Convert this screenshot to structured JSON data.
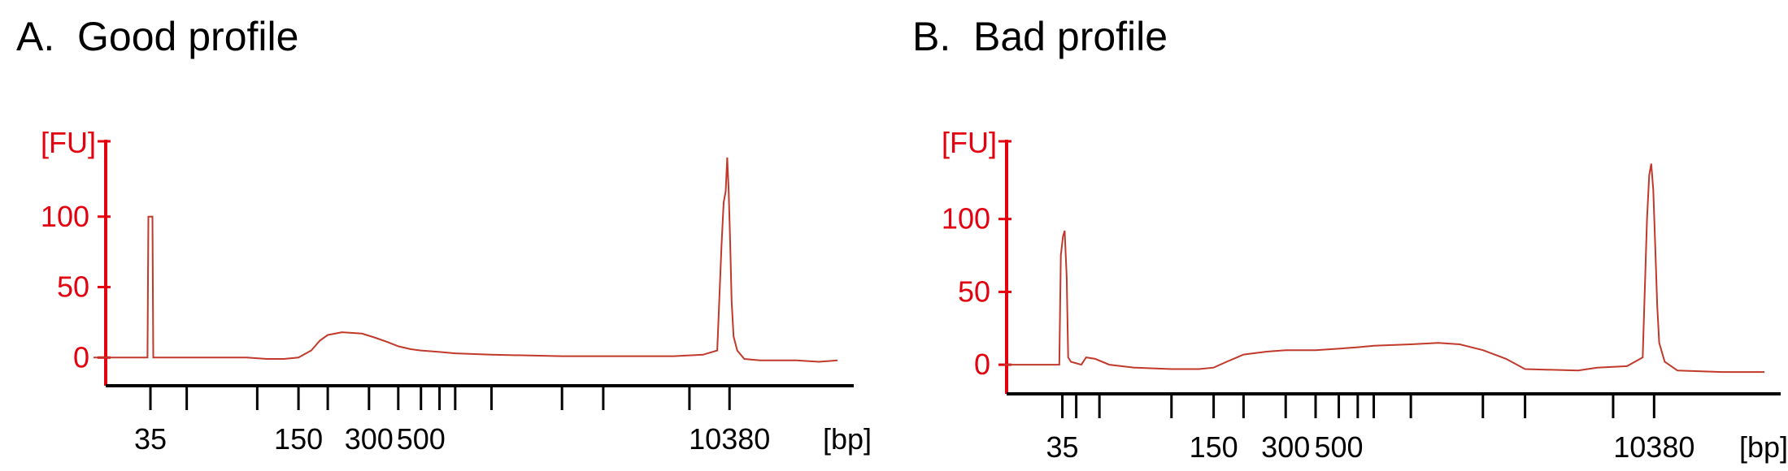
{
  "chart_data": [
    {
      "type": "line",
      "title": "A.  Good profile",
      "ylabel": "[FU]",
      "xlabel": "[bp]",
      "y_ticks": [
        0,
        50,
        100
      ],
      "x_tick_labels": [
        {
          "value": 35,
          "label": "35"
        },
        {
          "value": 150,
          "label": "150"
        },
        {
          "value": 300,
          "label": "300"
        },
        {
          "value": 500,
          "label": "500"
        },
        {
          "value": 10380,
          "label": "10380"
        }
      ],
      "x_ladder_bp": [
        35,
        50,
        100,
        150,
        200,
        300,
        400,
        500,
        600,
        700,
        1000,
        2000,
        3000,
        7000,
        10380
      ],
      "x_range_bp": [
        20,
        30000
      ],
      "ylim": [
        -20,
        150
      ],
      "series": [
        {
          "color": "#c0392b",
          "points": [
            [
              20,
              0
            ],
            [
              34,
              0
            ],
            [
              34.3,
              100
            ],
            [
              35.7,
              100
            ],
            [
              36,
              0
            ],
            [
              90,
              0
            ],
            [
              110,
              -1
            ],
            [
              130,
              -1
            ],
            [
              150,
              0
            ],
            [
              170,
              5
            ],
            [
              185,
              12
            ],
            [
              200,
              16
            ],
            [
              230,
              18
            ],
            [
              280,
              17
            ],
            [
              320,
              14
            ],
            [
              360,
              11
            ],
            [
              400,
              8
            ],
            [
              450,
              6
            ],
            [
              500,
              5
            ],
            [
              600,
              4
            ],
            [
              700,
              3
            ],
            [
              1000,
              2
            ],
            [
              2000,
              1
            ],
            [
              4000,
              1
            ],
            [
              6000,
              1
            ],
            [
              8000,
              2
            ],
            [
              9200,
              5
            ],
            [
              9600,
              80
            ],
            [
              9800,
              110
            ],
            [
              10000,
              118
            ],
            [
              10150,
              142
            ],
            [
              10300,
              118
            ],
            [
              10450,
              80
            ],
            [
              10600,
              40
            ],
            [
              10800,
              15
            ],
            [
              11200,
              5
            ],
            [
              12000,
              -1
            ],
            [
              14000,
              -2
            ],
            [
              20000,
              -2
            ],
            [
              25000,
              -3
            ],
            [
              30000,
              -2
            ]
          ]
        }
      ]
    },
    {
      "type": "line",
      "title": "B.  Bad profile",
      "ylabel": "[FU]",
      "xlabel": "[bp]",
      "y_ticks": [
        0,
        50,
        100
      ],
      "x_tick_labels": [
        {
          "value": 35,
          "label": "35"
        },
        {
          "value": 150,
          "label": "150"
        },
        {
          "value": 300,
          "label": "300"
        },
        {
          "value": 500,
          "label": "500"
        },
        {
          "value": 10380,
          "label": "10380"
        }
      ],
      "x_ladder_bp": [
        35,
        40,
        50,
        100,
        150,
        200,
        300,
        400,
        500,
        600,
        700,
        1000,
        2000,
        3000,
        7000,
        10380
      ],
      "x_range_bp": [
        20,
        30000
      ],
      "ylim": [
        -20,
        150
      ],
      "series": [
        {
          "color": "#c0392b",
          "points": [
            [
              20,
              0
            ],
            [
              34,
              0
            ],
            [
              34.5,
              75
            ],
            [
              35.2,
              88
            ],
            [
              35.8,
              92
            ],
            [
              36.5,
              60
            ],
            [
              37,
              5
            ],
            [
              38,
              2
            ],
            [
              42,
              0
            ],
            [
              44,
              5
            ],
            [
              48,
              4
            ],
            [
              55,
              0
            ],
            [
              70,
              -2
            ],
            [
              100,
              -3
            ],
            [
              130,
              -3
            ],
            [
              150,
              -2
            ],
            [
              170,
              2
            ],
            [
              200,
              7
            ],
            [
              250,
              9
            ],
            [
              300,
              10
            ],
            [
              400,
              10
            ],
            [
              500,
              11
            ],
            [
              600,
              12
            ],
            [
              700,
              13
            ],
            [
              1000,
              14
            ],
            [
              1300,
              15
            ],
            [
              1600,
              14
            ],
            [
              2000,
              10
            ],
            [
              2500,
              4
            ],
            [
              3000,
              -3
            ],
            [
              5000,
              -4
            ],
            [
              6000,
              -2
            ],
            [
              8000,
              -1
            ],
            [
              9300,
              5
            ],
            [
              9700,
              100
            ],
            [
              9900,
              130
            ],
            [
              10100,
              138
            ],
            [
              10300,
              120
            ],
            [
              10500,
              80
            ],
            [
              10700,
              40
            ],
            [
              10900,
              15
            ],
            [
              11500,
              2
            ],
            [
              13000,
              -4
            ],
            [
              20000,
              -5
            ],
            [
              30000,
              -5
            ]
          ]
        }
      ]
    }
  ]
}
